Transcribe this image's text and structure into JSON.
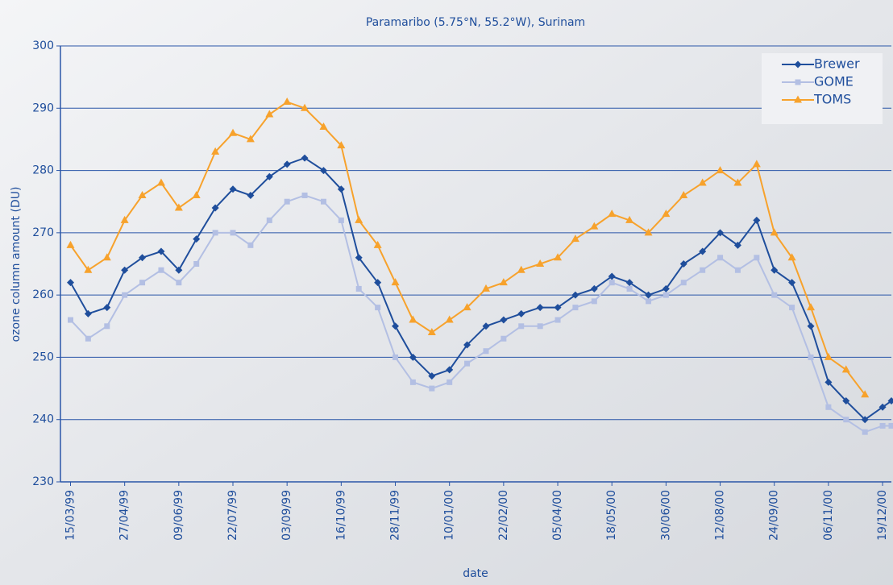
{
  "chart_data": {
    "type": "line",
    "title": "Paramaribo (5.75°N, 55.2°W), Surinam",
    "x_label": "date",
    "y_label": "ozone column amount (DU)",
    "x": [
      "15/03/99",
      "29/03/99",
      "13/04/99",
      "27/04/99",
      "11/05/99",
      "26/05/99",
      "09/06/99",
      "23/06/99",
      "08/07/99",
      "22/07/99",
      "05/08/99",
      "20/08/99",
      "03/09/99",
      "17/09/99",
      "02/10/99",
      "16/10/99",
      "30/10/99",
      "14/11/99",
      "28/11/99",
      "12/12/99",
      "27/12/99",
      "10/01/00",
      "24/01/00",
      "08/02/00",
      "22/02/00",
      "07/03/00",
      "22/03/00",
      "05/04/00",
      "19/04/00",
      "04/05/00",
      "18/05/00",
      "01/06/00",
      "16/06/00",
      "30/06/00",
      "14/07/00",
      "29/07/00",
      "12/08/00",
      "26/08/00",
      "10/09/00",
      "24/09/00",
      "08/10/00",
      "23/10/00",
      "06/11/00",
      "20/11/00",
      "05/12/00",
      "19/12/00",
      "26/12/00"
    ],
    "series": [
      {
        "name": "Brewer",
        "color": "#1f4e9c",
        "marker": "diamond",
        "values": [
          262,
          257,
          258,
          264,
          266,
          267,
          264,
          269,
          274,
          277,
          276,
          279,
          281,
          282,
          280,
          277,
          266,
          262,
          255,
          250,
          247,
          248,
          252,
          255,
          256,
          257,
          258,
          258,
          260,
          261,
          263,
          262,
          260,
          261,
          265,
          267,
          270,
          268,
          272,
          264,
          262,
          255,
          246,
          243,
          240,
          242,
          243
        ]
      },
      {
        "name": "GOME",
        "color": "#b3bfe3",
        "marker": "square",
        "values": [
          256,
          253,
          255,
          260,
          262,
          264,
          262,
          265,
          270,
          270,
          268,
          272,
          275,
          276,
          275,
          272,
          261,
          258,
          250,
          246,
          245,
          246,
          249,
          251,
          253,
          255,
          255,
          256,
          258,
          259,
          262,
          261,
          259,
          260,
          262,
          264,
          266,
          264,
          266,
          260,
          258,
          250,
          242,
          240,
          238,
          239,
          239
        ]
      },
      {
        "name": "TOMS",
        "color": "#f7a22c",
        "marker": "triangle",
        "values": [
          268,
          264,
          266,
          272,
          276,
          278,
          274,
          276,
          283,
          286,
          285,
          289,
          291,
          290,
          287,
          284,
          272,
          268,
          262,
          256,
          254,
          256,
          258,
          261,
          262,
          264,
          265,
          266,
          269,
          271,
          273,
          272,
          270,
          273,
          276,
          278,
          280,
          278,
          281,
          270,
          266,
          258,
          250,
          248,
          244,
          null,
          null
        ]
      }
    ],
    "xlim": [
      "07/03/99",
      "26/12/00"
    ],
    "xticks": [
      "15/03/99",
      "27/04/99",
      "09/06/99",
      "22/07/99",
      "03/09/99",
      "16/10/99",
      "28/11/99",
      "10/01/00",
      "22/02/00",
      "05/04/00",
      "18/05/00",
      "30/06/00",
      "12/08/00",
      "24/09/00",
      "06/11/00",
      "19/12/00"
    ],
    "ylim": [
      230,
      300
    ],
    "yticks": [
      230,
      240,
      250,
      260,
      270,
      280,
      290,
      300
    ],
    "grid": true,
    "legend": "upper right"
  }
}
